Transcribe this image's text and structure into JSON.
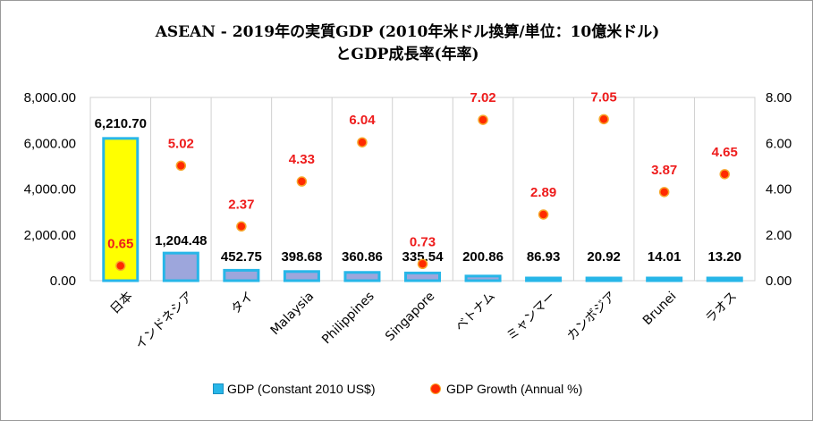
{
  "chart_data": {
    "type": "bar",
    "title_line1": "ASEAN - 2019年の実質GDP  (2010年米ドル換算/単位：10億米ドル)",
    "title_line2": "とGDP成長率(年率)",
    "categories": [
      "日本",
      "インドネシア",
      "タイ",
      "Malaysia",
      "Philippines",
      "Singapore",
      "ベトナム",
      "ミャンマー",
      "カンボジア",
      "Brunei",
      "ラオス"
    ],
    "series": [
      {
        "name": "GDP (Constant 2010 US$)",
        "kind": "bar",
        "axis": "left",
        "values": [
          6210.7,
          1204.48,
          452.75,
          398.68,
          360.86,
          335.54,
          200.86,
          86.93,
          20.92,
          14.01,
          13.2
        ],
        "labels": [
          "6,210.70",
          "1,204.48",
          "452.75",
          "398.68",
          "360.86",
          "335.54",
          "200.86",
          "86.93",
          "20.92",
          "14.01",
          "13.20"
        ]
      },
      {
        "name": "GDP Growth (Annual %)",
        "kind": "scatter",
        "axis": "right",
        "values": [
          0.65,
          5.02,
          2.37,
          4.33,
          6.04,
          0.73,
          7.02,
          2.89,
          7.05,
          3.87,
          4.65
        ],
        "labels": [
          "0.65",
          "5.02",
          "2.37",
          "4.33",
          "6.04",
          "0.73",
          "7.02",
          "2.89",
          "7.05",
          "3.87",
          "4.65"
        ]
      }
    ],
    "y_left": {
      "range": [
        0,
        8000
      ],
      "ticks": [
        "0.00",
        "2,000.00",
        "4,000.00",
        "6,000.00",
        "8,000.00"
      ]
    },
    "y_right": {
      "range": [
        0,
        8
      ],
      "ticks": [
        "0.00",
        "2.00",
        "4.00",
        "6.00",
        "8.00"
      ]
    },
    "grid": "vertical category separators",
    "legend": "bottom",
    "colors": {
      "bar": "#27b6e8",
      "bar_inner": "#9da6dc",
      "bar_highlight": "#ffff00",
      "dot": "#ff2a00",
      "dot_edge": "#f7a72b",
      "growth_label": "#ee1c1c"
    }
  }
}
